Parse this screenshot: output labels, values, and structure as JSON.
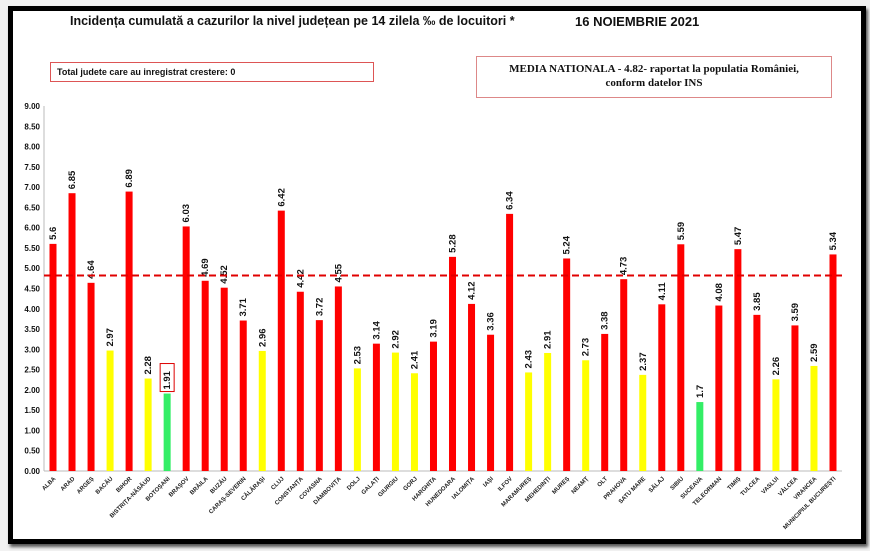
{
  "chart_data": {
    "type": "bar",
    "title": "Incidența cumulată a cazurilor la nivel județean pe 14 zilela ‰ de locuitori *",
    "date": "16 NOIEMBRIE 2021",
    "note": "Total judete care au inregistrat crestere: 0",
    "average_line": {
      "value": 4.82,
      "label_line1": "MEDIA NATIONALA  - 4.82-  raportat la populatia României,",
      "label_line2": "conform datelor INS",
      "color": "#e00000",
      "style": "dashed"
    },
    "ylim": [
      0,
      9
    ],
    "yticks": [
      "0.00",
      "0.50",
      "1.00",
      "1.50",
      "2.00",
      "2.50",
      "3.00",
      "3.50",
      "4.00",
      "4.50",
      "5.00",
      "5.50",
      "6.00",
      "6.50",
      "7.00",
      "7.50",
      "8.00",
      "8.50",
      "9.00"
    ],
    "grid": false,
    "colors": {
      "high": "#ff0000",
      "medium": "#ffff00",
      "low": "#33ee66"
    },
    "categories": [
      "ALBA",
      "ARAD",
      "ARGEȘ",
      "BACĂU",
      "BIHOR",
      "BISTRIȚA-NĂSĂUD",
      "BOTOȘANI",
      "BRAȘOV",
      "BRĂILA",
      "BUZĂU",
      "CARAȘ-SEVERIN",
      "CĂLĂRAȘI",
      "CLUJ",
      "CONSTANȚA",
      "COVASNA",
      "DÂMBOVIȚA",
      "DOLJ",
      "GALAȚI",
      "GIURGIU",
      "GORJ",
      "HARGHITA",
      "HUNEDOARA",
      "IALOMIȚA",
      "IAȘI",
      "ILFOV",
      "MARAMUREȘ",
      "MEHEDINȚI",
      "MUREȘ",
      "NEAMȚ",
      "OLT",
      "PRAHOVA",
      "SATU MARE",
      "SĂLAJ",
      "SIBIU",
      "SUCEAVA",
      "TELEORMAN",
      "TIMIȘ",
      "TULCEA",
      "VASLUI",
      "VÂLCEA",
      "VRANCEA",
      "MUNICIPIUL BUCUREȘTI"
    ],
    "values": [
      5.6,
      6.85,
      4.64,
      2.97,
      6.89,
      2.28,
      1.91,
      6.03,
      4.69,
      4.52,
      3.71,
      2.96,
      6.42,
      4.42,
      3.72,
      4.55,
      2.53,
      3.14,
      2.92,
      2.41,
      3.19,
      5.28,
      4.12,
      3.36,
      6.34,
      2.43,
      2.91,
      5.24,
      2.73,
      3.38,
      4.73,
      2.37,
      4.11,
      5.59,
      1.7,
      4.08,
      5.47,
      3.85,
      2.26,
      3.59,
      2.59,
      5.34
    ]
  }
}
